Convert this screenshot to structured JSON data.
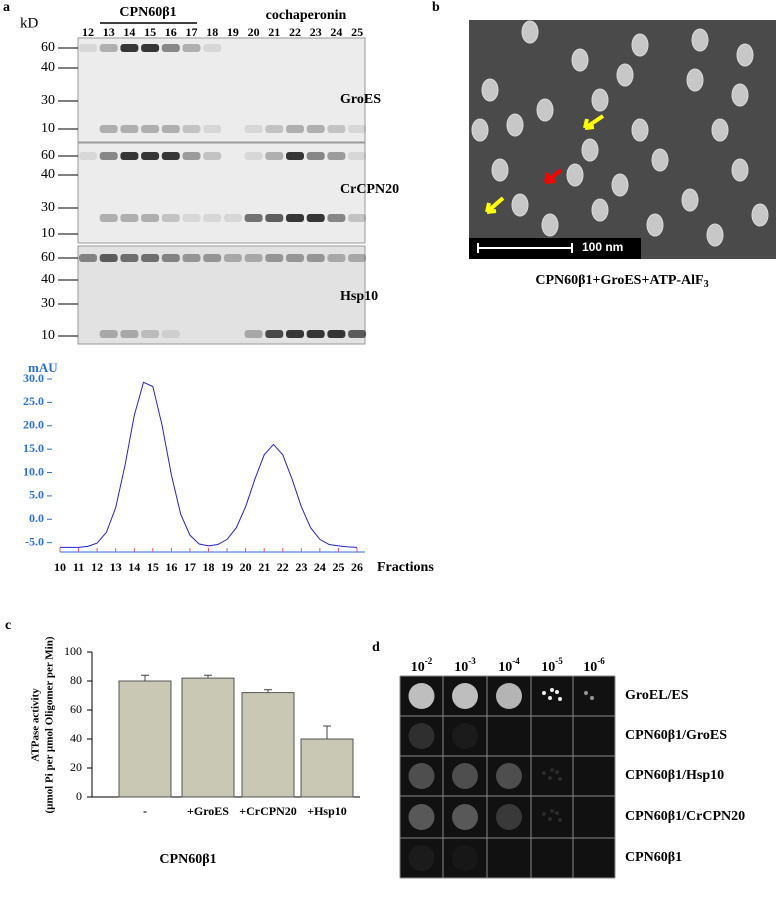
{
  "panel_a": {
    "label": "a",
    "unit": "kD",
    "group1": "CPN60β1",
    "group2": "cochaperonin",
    "lanes": [
      "12",
      "13",
      "14",
      "15",
      "16",
      "17",
      "18",
      "19",
      "20",
      "21",
      "22",
      "23",
      "24",
      "25"
    ],
    "gels": [
      {
        "name": "GroES",
        "markers": [
          "60",
          "40",
          "30",
          "10"
        ]
      },
      {
        "name": "CrCPN20",
        "markers": [
          "60",
          "40",
          "30",
          "10"
        ]
      },
      {
        "name": "Hsp10",
        "markers": [
          "60",
          "40",
          "30",
          "10"
        ]
      }
    ]
  },
  "panel_b": {
    "label": "b",
    "scale_bar": "100 nm",
    "caption": "CPN60β1+GroES+ATP-AlF",
    "caption_sub": "3"
  },
  "chart_data": [
    {
      "type": "line",
      "ylabel": "mAU",
      "xlabel": "Fractions",
      "color": "#2424c8",
      "x": [
        10,
        10.5,
        11,
        11.5,
        12,
        12.5,
        13,
        13.5,
        14,
        14.5,
        15,
        15.5,
        16,
        16.5,
        17,
        17.5,
        18,
        18.5,
        19,
        19.5,
        20,
        20.5,
        21,
        21.5,
        22,
        22.5,
        23,
        23.5,
        24,
        24.5,
        25,
        25.5,
        26
      ],
      "values": [
        -6.0,
        -6.0,
        -6.0,
        -5.8,
        -5.1,
        -2.8,
        2.5,
        11.5,
        22.2,
        29.3,
        28.4,
        20.1,
        9.5,
        1.1,
        -3.4,
        -5.3,
        -5.7,
        -5.4,
        -4.3,
        -1.8,
        2.7,
        8.6,
        13.8,
        16.0,
        13.8,
        8.6,
        2.7,
        -1.8,
        -4.3,
        -5.4,
        -5.7,
        -5.9,
        -6.0
      ],
      "xlim": [
        10,
        26
      ],
      "ylim": [
        -7,
        33
      ],
      "xticks": [
        10,
        11,
        12,
        13,
        14,
        15,
        16,
        17,
        18,
        19,
        20,
        21,
        22,
        23,
        24,
        25,
        26
      ],
      "yticks": [
        {
          "value": -5,
          "label": "-5.0"
        },
        {
          "value": 0,
          "label": "0.0"
        },
        {
          "value": 5,
          "label": "5.0"
        },
        {
          "value": 10,
          "label": "10.0"
        },
        {
          "value": 15,
          "label": "15.0"
        },
        {
          "value": 20,
          "label": "20.0"
        },
        {
          "value": 25,
          "label": "25.0"
        },
        {
          "value": 30,
          "label": "30.0"
        }
      ]
    },
    {
      "type": "bar",
      "panel_label": "c",
      "ylabel": [
        "ATPase activity",
        "(µmol Pi per µmol Oligomer per Min)"
      ],
      "xlabel": "CPN60β1",
      "categories": [
        "-",
        "+GroES",
        "+CrCPN20",
        "+Hsp10"
      ],
      "values": [
        80,
        82,
        72,
        40
      ],
      "errors": [
        4,
        2,
        2,
        9
      ],
      "color": "#c8c8b4",
      "ylim": [
        0,
        100
      ],
      "yticks": [
        0,
        20,
        40,
        60,
        80,
        100
      ]
    }
  ],
  "panel_d": {
    "label": "d",
    "dilutions": [
      {
        "base": "10",
        "exp": "-2"
      },
      {
        "base": "10",
        "exp": "-3"
      },
      {
        "base": "10",
        "exp": "-4"
      },
      {
        "base": "10",
        "exp": "-5"
      },
      {
        "base": "10",
        "exp": "-6"
      }
    ],
    "strains": [
      "GroEL/ES",
      "CPN60β1/GroES",
      "CPN60β1/Hsp10",
      "CPN60β1/CrCPN20",
      "CPN60β1"
    ]
  }
}
